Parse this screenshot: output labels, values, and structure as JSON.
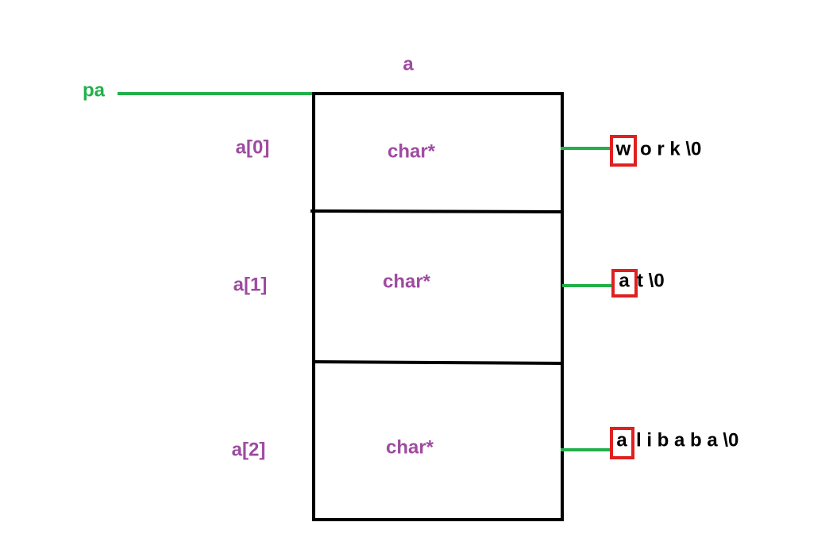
{
  "array_name": "a",
  "pointer": "pa",
  "cells": [
    {
      "index": "a[0]",
      "type": "char*",
      "string_first": "w",
      "string_rest": "o r k \\0"
    },
    {
      "index": "a[1]",
      "type": "char*",
      "string_first": "a",
      "string_rest": "t \\0"
    },
    {
      "index": "a[2]",
      "type": "char*",
      "string_first": "a",
      "string_rest": "l i b a b a \\0"
    }
  ]
}
